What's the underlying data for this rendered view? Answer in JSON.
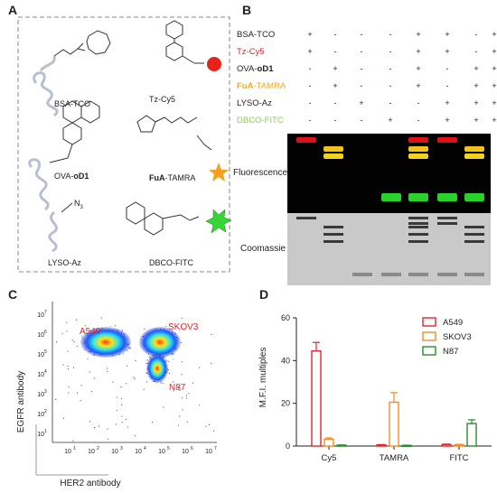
{
  "panels": {
    "a": "A",
    "b": "B",
    "c": "C",
    "d": "D"
  },
  "panel_a": {
    "items": [
      {
        "label": "BSA-TCO"
      },
      {
        "label": "Tz-Cy5"
      },
      {
        "label_bold": "oD1",
        "label_prefix": "OVA-"
      },
      {
        "label_prefix": "FuA",
        "label_suffix": "-TAMRA"
      },
      {
        "label": "LYSO-Az"
      },
      {
        "label": "DBCO-FITC"
      }
    ],
    "azide_text": "N",
    "azide_sub": "3"
  },
  "panel_b": {
    "rows": [
      {
        "label_plain": "BSA-TCO",
        "color": "#222222",
        "signs": [
          "+",
          "-",
          "-",
          "-",
          "+",
          "+",
          "-",
          "+"
        ]
      },
      {
        "label_plain": "Tz-Cy5",
        "color": "#e0262c",
        "signs": [
          "+",
          "-",
          "-",
          "-",
          "+",
          "+",
          "-",
          "+"
        ]
      },
      {
        "label_prefix": "OVA-",
        "label_bold": "oD1",
        "color": "#222222",
        "signs": [
          "-",
          "+",
          "-",
          "-",
          "+",
          "-",
          "+",
          "+"
        ]
      },
      {
        "label_prefix": "FuA",
        "label_suffix": "-TAMRA",
        "color": "#f2a91a",
        "signs": [
          "-",
          "+",
          "-",
          "-",
          "+",
          "-",
          "+",
          "+"
        ]
      },
      {
        "label_plain": "LYSO-Az",
        "color": "#222222",
        "signs": [
          "-",
          "-",
          "+",
          "-",
          "-",
          "+",
          "+",
          "+"
        ]
      },
      {
        "label_plain": "DBCO-FITC",
        "color": "#8ccf4a",
        "signs": [
          "-",
          "-",
          "-",
          "+",
          "-",
          "+",
          "+",
          "+"
        ]
      }
    ],
    "gel_labels": {
      "fluorescence": "Fluorescence",
      "coomassie": "Coomassie"
    }
  },
  "panel_c": {
    "xlabel": "HER2 antibody",
    "ylabel": "EGFR antibody",
    "x_ticks": [
      "10",
      "10",
      "10",
      "10",
      "10",
      "10",
      "10"
    ],
    "x_exps": [
      "1",
      "2",
      "3",
      "4",
      "5",
      "6",
      "7"
    ],
    "y_ticks": [
      "10",
      "10",
      "10",
      "10",
      "10",
      "10",
      "10"
    ],
    "y_exps": [
      "1",
      "2",
      "3",
      "4",
      "5",
      "6",
      "7"
    ],
    "populations": [
      "A549",
      "SKOV3",
      "N87"
    ],
    "colors": {
      "label": "#e0262c"
    }
  },
  "chart_data": {
    "type": "bar",
    "categories": [
      "Cy5",
      "TAMRA",
      "FITC"
    ],
    "series": [
      {
        "name": "A549",
        "values": [
          44.5,
          0.5,
          0.7
        ],
        "errors": [
          4.0,
          0.2,
          0.2
        ]
      },
      {
        "name": "SKOV3",
        "values": [
          3.2,
          20.5,
          0.6
        ],
        "errors": [
          0.6,
          4.5,
          0.2
        ]
      },
      {
        "name": "N87",
        "values": [
          0.4,
          0.3,
          10.5
        ],
        "errors": [
          0.1,
          0.1,
          1.8
        ]
      }
    ],
    "colors": [
      "#e0262c",
      "#f28c28",
      "#2e8b2e"
    ],
    "ylabel": "M.F.I. multiples",
    "xlabel": "",
    "ylim": [
      0,
      60
    ],
    "yticks": [
      "0",
      "20",
      "40",
      "60"
    ],
    "legend": "top-right"
  }
}
